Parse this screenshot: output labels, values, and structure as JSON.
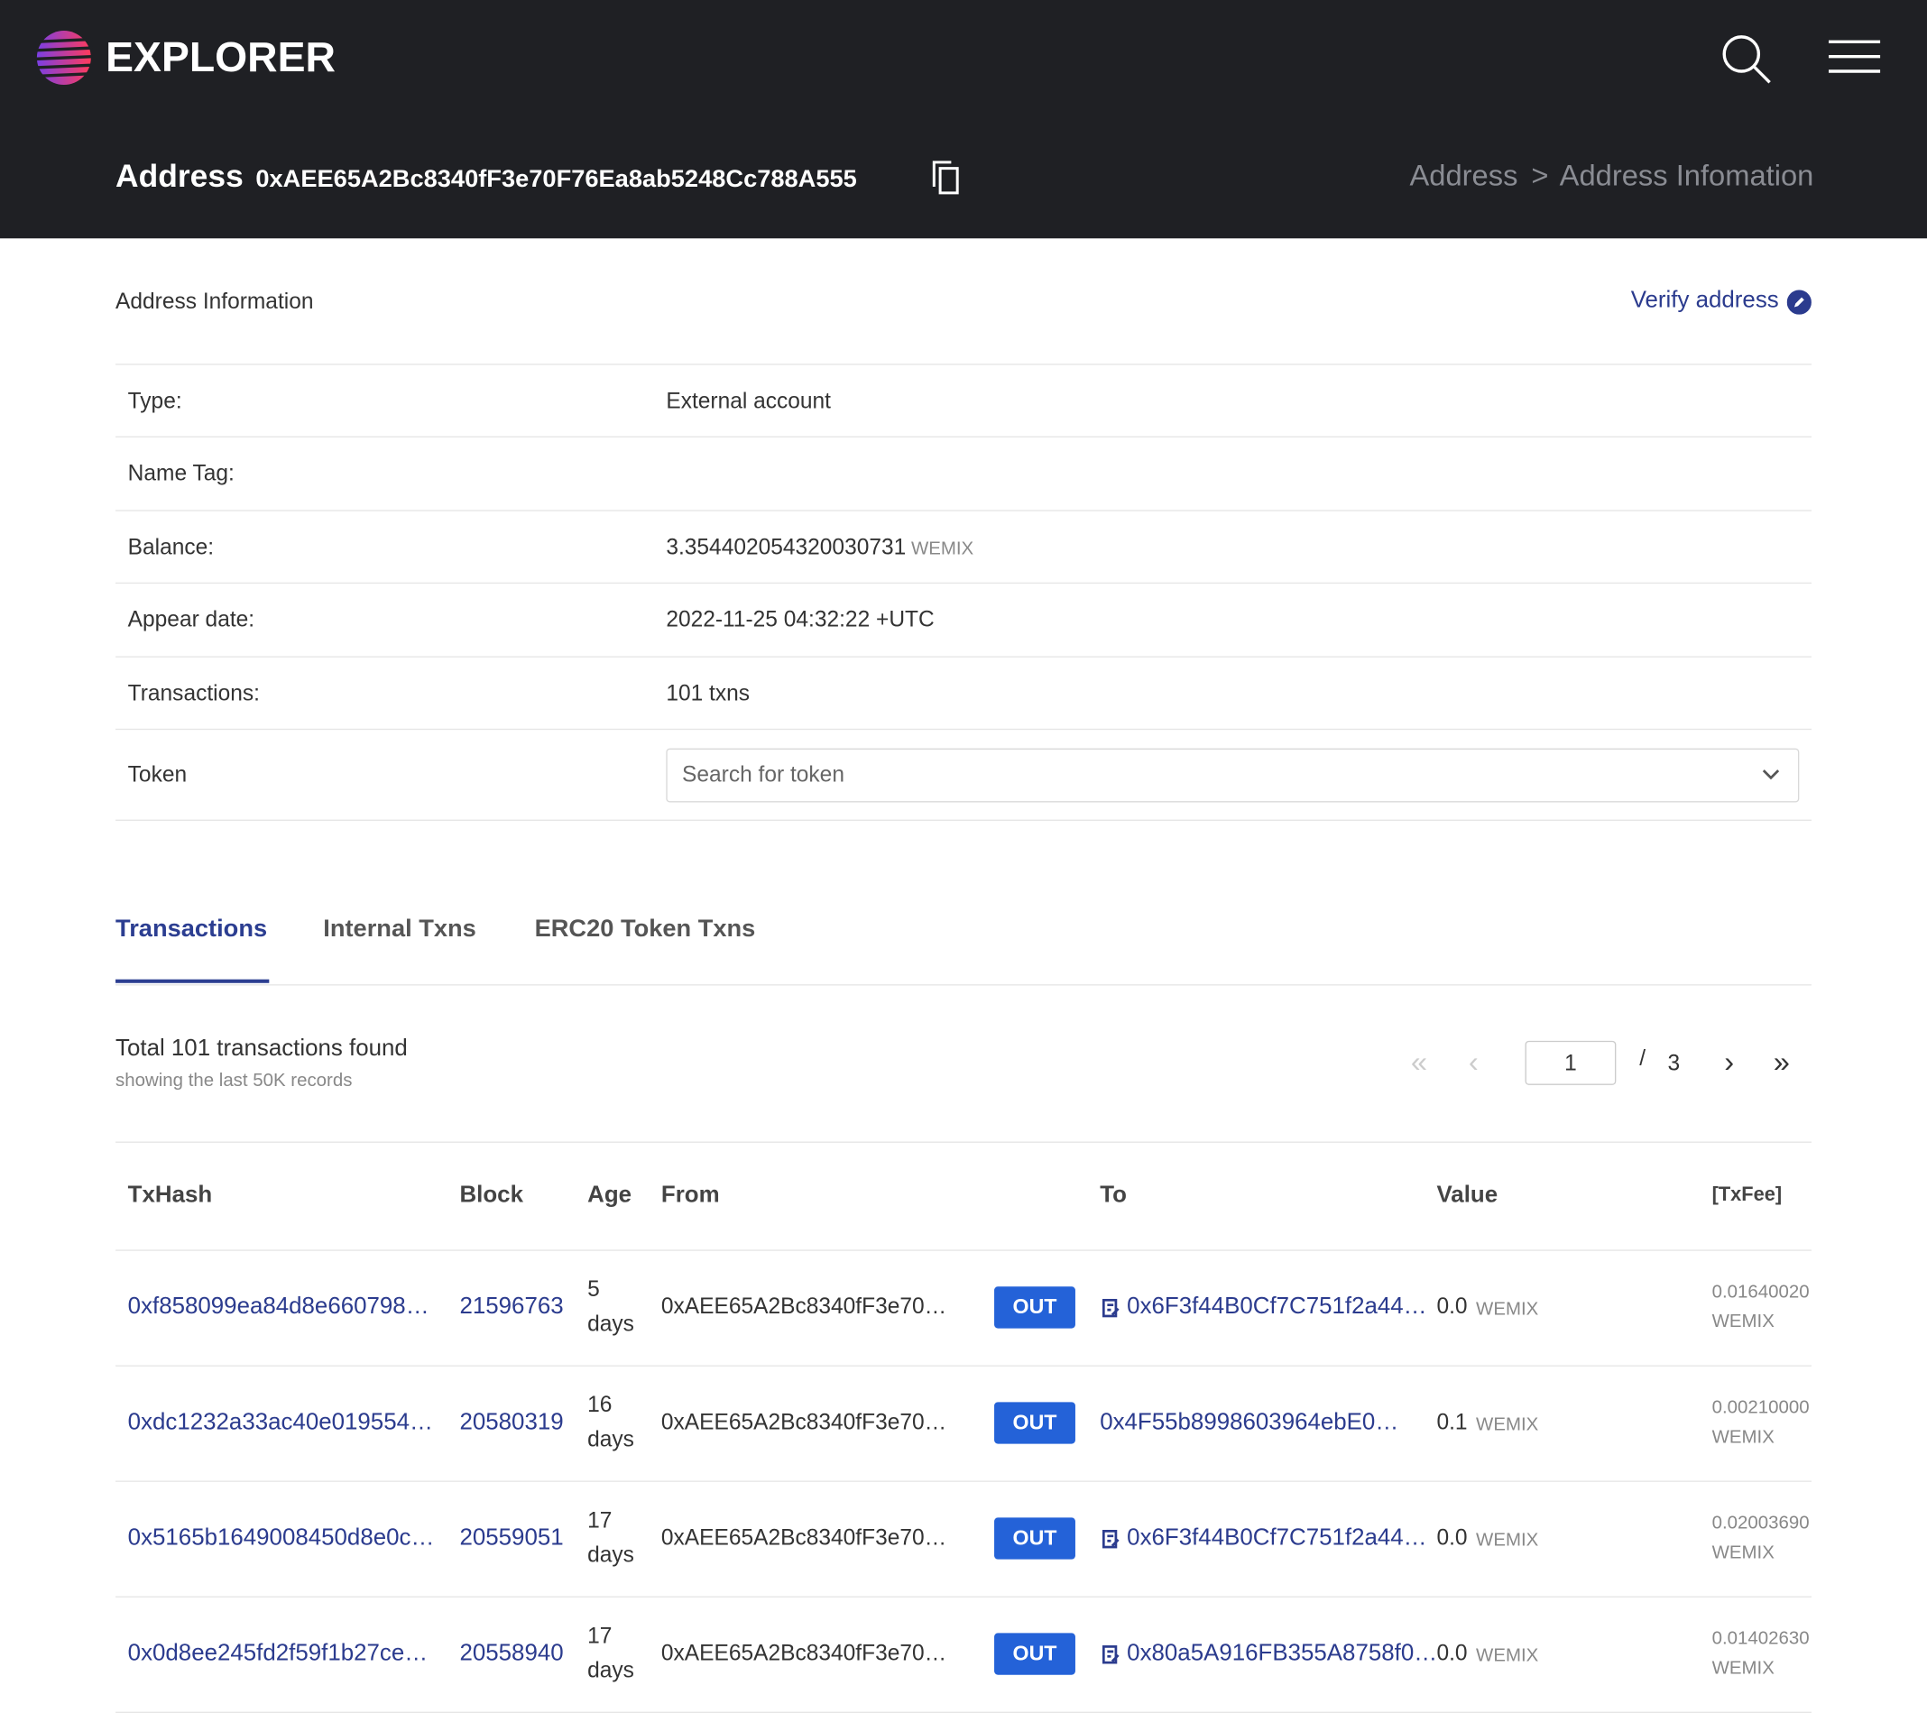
{
  "header": {
    "logo": "EXPLORER",
    "page_label": "Address",
    "address": "0xAEE65A2Bc8340fF3e70F76Ea8ab5248Cc788A555",
    "breadcrumb": [
      "Address",
      ">",
      "Address Infomation"
    ]
  },
  "info": {
    "title": "Address Information",
    "verify": "Verify address",
    "rows": [
      [
        "Type:",
        "External account"
      ],
      [
        "Name Tag:",
        ""
      ],
      [
        "Balance:",
        "3.354402054320030731"
      ],
      [
        "Appear date:",
        "2022-11-25 04:32:22 +UTC"
      ],
      [
        "Transactions:",
        "101 txns"
      ]
    ],
    "balance_unit": "WEMIX",
    "token_label": "Token",
    "token_placeholder": "Search for token"
  },
  "tabs": [
    "Transactions",
    "Internal Txns",
    "ERC20 Token Txns"
  ],
  "summary": {
    "total": "Total 101 transactions found",
    "note": "showing the last 50K records"
  },
  "pagination": {
    "first": "«",
    "prev": "‹",
    "page": "1",
    "sep": "/",
    "pages": "3",
    "next": "›",
    "last": "»"
  },
  "table": {
    "headers": [
      "TxHash",
      "Block",
      "Age",
      "From",
      "To",
      "Value",
      "[TxFee]"
    ],
    "rows": [
      [
        "0xf858099ea84d8e660798…",
        "21596763",
        "5",
        "days",
        "0xAEE65A2Bc8340fF3e70…",
        "OUT",
        "0x6F3f44B0Cf7C751f2a44…",
        "0.0",
        "WEMIX",
        "0.01640020",
        "WEMIX"
      ],
      [
        "0xdc1232a33ac40e019554…",
        "20580319",
        "16",
        "days",
        "0xAEE65A2Bc8340fF3e70…",
        "OUT",
        "0x4F55b8998603964ebE0…",
        "0.1",
        "WEMIX",
        "0.00210000",
        "WEMIX"
      ],
      [
        "0x5165b1649008450d8e0c…",
        "20559051",
        "17",
        "days",
        "0xAEE65A2Bc8340fF3e70…",
        "OUT",
        "0x6F3f44B0Cf7C751f2a44…",
        "0.0",
        "WEMIX",
        "0.02003690",
        "WEMIX"
      ],
      [
        "0x0d8ee245fd2f59f1b27ce…",
        "20558940",
        "17",
        "days",
        "0xAEE65A2Bc8340fF3e70…",
        "OUT",
        "0x80a5A916FB355A8758f0…",
        "0.0",
        "WEMIX",
        "0.01402630",
        "WEMIX"
      ]
    ]
  }
}
